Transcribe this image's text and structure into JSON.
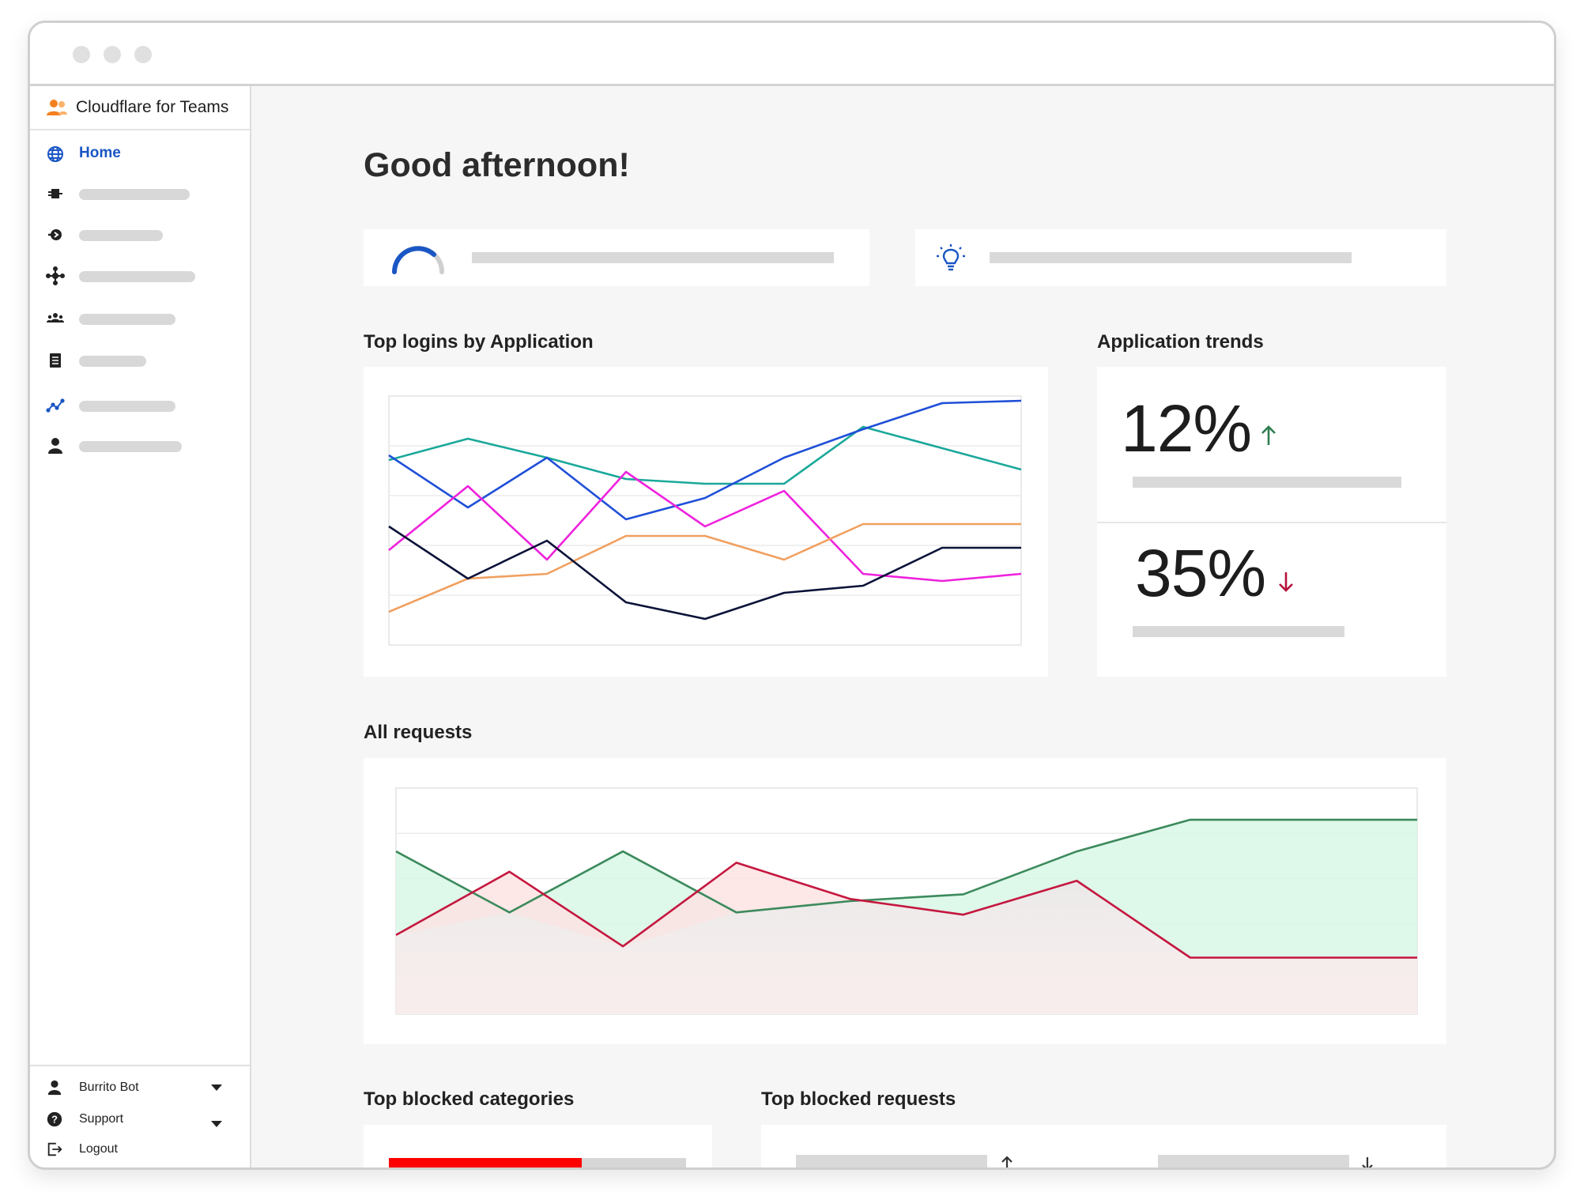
{
  "window": {
    "controls": [
      "close",
      "minimize",
      "maximize"
    ]
  },
  "sidebar": {
    "brand": {
      "icon": "people-icon",
      "label": "Cloudflare for Teams",
      "icon_color": "#f38020"
    },
    "items": [
      {
        "id": "home",
        "icon": "globe-icon",
        "label": "Home",
        "active": true
      },
      {
        "id": "access",
        "icon": "plug-icon",
        "label": ""
      },
      {
        "id": "gateway",
        "icon": "network-icon",
        "label": ""
      },
      {
        "id": "network",
        "icon": "nodes-icon",
        "label": ""
      },
      {
        "id": "users",
        "icon": "group-icon",
        "label": ""
      },
      {
        "id": "logs",
        "icon": "list-icon",
        "label": ""
      },
      {
        "id": "analytics",
        "icon": "chart-icon",
        "label": ""
      },
      {
        "id": "account",
        "icon": "user-icon",
        "label": ""
      }
    ],
    "footer": {
      "user": {
        "icon": "user-icon",
        "label": "Burrito Bot"
      },
      "support": {
        "icon": "help-icon",
        "label": "Support"
      },
      "logout": {
        "icon": "logout-icon",
        "label": "Logout"
      }
    }
  },
  "main": {
    "greeting": "Good afternoon!",
    "status_cards": [
      {
        "icon": "progress-arc-icon",
        "label": ""
      },
      {
        "icon": "lightbulb-icon",
        "label": ""
      }
    ],
    "sections": {
      "top_logins": "Top logins by Application",
      "app_trends": "Application trends",
      "all_requests": "All requests",
      "top_blocked_categories": "Top blocked categories",
      "top_blocked_requests": "Top blocked requests"
    },
    "trends": [
      {
        "value": "12%",
        "direction": "up",
        "color": "#2e7d4f"
      },
      {
        "value": "35%",
        "direction": "down",
        "color": "#b5123b"
      }
    ],
    "blocked_categories": {
      "fill_fraction": 0.65,
      "fill_color": "#ff0000"
    },
    "blocked_requests": [
      {
        "direction": "up"
      },
      {
        "direction": "down"
      }
    ]
  },
  "chart_data": [
    {
      "type": "line",
      "x": [
        0,
        1,
        2,
        3,
        4,
        5,
        6,
        7,
        8
      ],
      "series": [
        {
          "color": "#1aa89a",
          "values": [
            78,
            87,
            79,
            70,
            68,
            68,
            92,
            83,
            74
          ]
        },
        {
          "color": "#1f4fd8",
          "values": [
            80,
            58,
            79,
            53,
            62,
            79,
            91,
            102,
            103
          ]
        },
        {
          "color": "#ee22dd",
          "values": [
            40,
            67,
            36,
            73,
            50,
            65,
            30,
            27,
            30
          ]
        },
        {
          "color": "#f0a060",
          "values": [
            14,
            28,
            30,
            46,
            46,
            36,
            51,
            51,
            51
          ]
        },
        {
          "color": "#0b1238",
          "values": [
            50,
            28,
            44,
            18,
            11,
            22,
            25,
            41,
            41
          ]
        }
      ],
      "ylim": [
        0,
        105
      ],
      "grid": true
    },
    {
      "type": "area",
      "x": [
        0,
        1,
        2,
        3,
        4,
        5,
        6,
        7,
        8,
        9
      ],
      "series": [
        {
          "color": "#3c8a5c",
          "fill": "#d8f7e6",
          "values": [
            72,
            45,
            72,
            45,
            50,
            53,
            72,
            86,
            86,
            86
          ]
        },
        {
          "color": "#c4173f",
          "fill": "#fde3e3",
          "values": [
            35,
            63,
            30,
            67,
            51,
            44,
            59,
            25,
            25,
            25
          ]
        }
      ],
      "ylim": [
        0,
        100
      ],
      "grid": true
    }
  ]
}
